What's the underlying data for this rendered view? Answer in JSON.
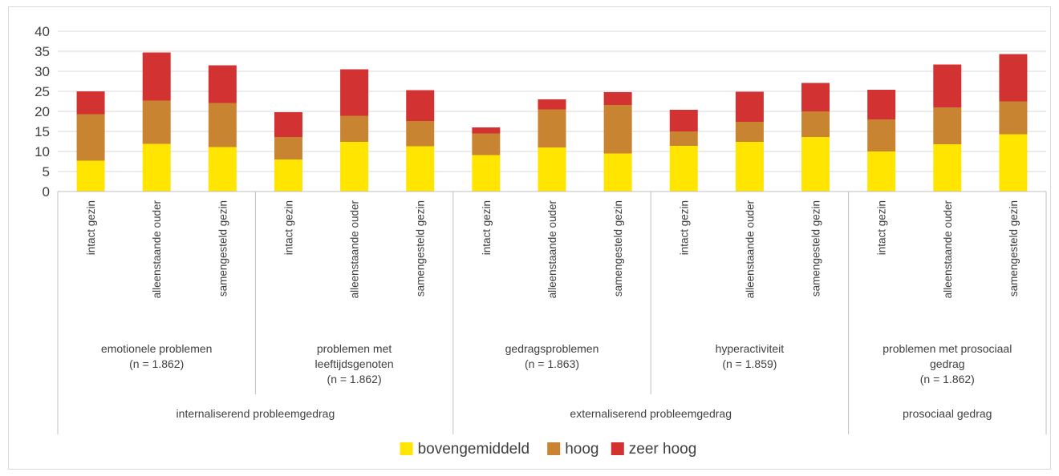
{
  "chart_data": {
    "type": "bar",
    "stacked": true,
    "ylim": [
      0,
      40
    ],
    "yticks": [
      0,
      5,
      10,
      15,
      20,
      25,
      30,
      35,
      40
    ],
    "grid": true,
    "legend_position": "bottom",
    "categories": [
      "intact gezin",
      "alleenstaande ouder",
      "samengesteld gezin",
      "intact gezin",
      "alleenstaande ouder",
      "samengesteld gezin",
      "intact gezin",
      "alleenstaande ouder",
      "samengesteld gezin",
      "intact gezin",
      "alleenstaande ouder",
      "samengesteld gezin",
      "intact gezin",
      "alleenstaande ouder",
      "samengesteld gezin"
    ],
    "subgroups": [
      {
        "lines": [
          "emotionele problemen",
          "(n = 1.862)"
        ],
        "start": 0,
        "count": 3
      },
      {
        "lines": [
          "problemen met",
          "leeftijdsgenoten",
          "(n = 1.862)"
        ],
        "start": 3,
        "count": 3
      },
      {
        "lines": [
          "gedragsproblemen",
          "(n = 1.863)"
        ],
        "start": 6,
        "count": 3
      },
      {
        "lines": [
          "hyperactiviteit",
          "(n = 1.859)"
        ],
        "start": 9,
        "count": 3
      },
      {
        "lines": [
          "problemen met prosociaal",
          "gedrag",
          "(n = 1.862)"
        ],
        "start": 12,
        "count": 3
      }
    ],
    "groups": [
      {
        "label": "internaliserend probleemgedrag",
        "start": 0,
        "count": 6
      },
      {
        "label": "externaliserend probleemgedrag",
        "start": 6,
        "count": 6
      },
      {
        "label": "prosociaal gedrag",
        "start": 12,
        "count": 3
      }
    ],
    "series": [
      {
        "name": "bovengemiddeld",
        "color": "#ffe500",
        "values": [
          7.7,
          11.9,
          11.1,
          8.0,
          12.4,
          11.3,
          9.1,
          11.0,
          9.5,
          11.4,
          12.4,
          13.6,
          10.0,
          11.8,
          14.3
        ]
      },
      {
        "name": "hoog",
        "color": "#c98432",
        "values": [
          11.6,
          10.8,
          11.0,
          5.6,
          6.5,
          6.3,
          5.4,
          9.5,
          12.1,
          3.6,
          5.0,
          6.4,
          8.0,
          9.2,
          8.2
        ]
      },
      {
        "name": "zeer hoog",
        "color": "#d23232",
        "values": [
          5.7,
          12.0,
          9.4,
          6.2,
          11.6,
          7.7,
          1.5,
          2.5,
          3.2,
          5.4,
          7.5,
          7.1,
          7.4,
          10.7,
          11.8
        ]
      }
    ]
  }
}
